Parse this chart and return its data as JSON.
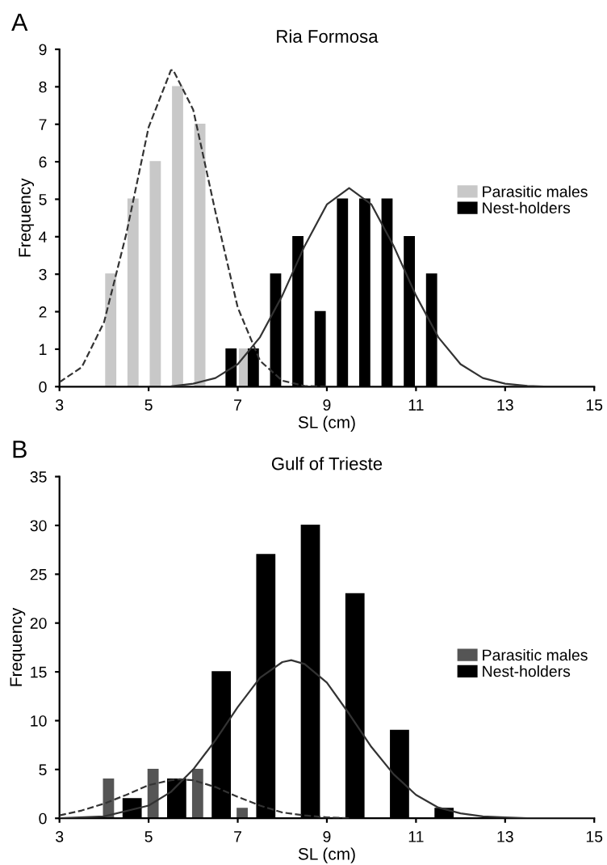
{
  "chart_data": [
    {
      "type": "bar",
      "title": "Ria Formosa",
      "xlabel": "SL (cm)",
      "ylabel": "Frequency",
      "annotations": [
        "A"
      ],
      "xlim": [
        3,
        15
      ],
      "xticks": [
        3,
        5,
        7,
        9,
        11,
        13,
        15
      ],
      "ylim": [
        0,
        9
      ],
      "yticks": [
        0,
        1,
        2,
        3,
        4,
        5,
        6,
        7,
        8,
        9
      ],
      "grid": false,
      "legend": "right",
      "series": [
        {
          "name": "Parasitic males",
          "color": "#c8c8c8",
          "x": [
            4.15,
            4.65,
            5.15,
            5.65,
            6.15,
            7.15
          ],
          "values": [
            3,
            5,
            6,
            8,
            7,
            1
          ]
        },
        {
          "name": "Nest-holders",
          "color": "#000000",
          "x": [
            6.85,
            7.35,
            7.85,
            8.35,
            8.85,
            9.35,
            9.85,
            10.35,
            10.85,
            11.35
          ],
          "values": [
            1,
            1,
            3,
            4,
            2,
            5,
            5,
            5,
            4,
            3
          ]
        },
        {
          "type": "line",
          "line_style": "dashed",
          "color": "#333333",
          "x": [
            3,
            3.5,
            4,
            4.5,
            5,
            5.5,
            5.55,
            6,
            6.5,
            7,
            7.5,
            8,
            8.5,
            9
          ],
          "values": [
            0.12,
            0.52,
            1.72,
            4.08,
            6.92,
            8.44,
            8.45,
            7.39,
            4.66,
            2.11,
            0.69,
            0.16,
            0.02,
            0
          ]
        },
        {
          "type": "line",
          "line_style": "solid",
          "color": "#333333",
          "x": [
            5,
            5.5,
            6,
            6.5,
            7,
            7.5,
            8,
            8.5,
            9,
            9.5,
            10,
            10.5,
            11,
            11.5,
            12,
            12.5,
            13,
            13.5,
            14,
            15
          ],
          "values": [
            0,
            0.01,
            0.08,
            0.23,
            0.6,
            1.32,
            2.43,
            3.75,
            4.86,
            5.3,
            4.86,
            3.75,
            2.43,
            1.32,
            0.6,
            0.23,
            0.08,
            0.02,
            0,
            0
          ]
        }
      ]
    },
    {
      "type": "bar",
      "title": "Gulf of Trieste",
      "xlabel": "SL (cm)",
      "ylabel": "Frequency",
      "annotations": [
        "B"
      ],
      "xlim": [
        3,
        15
      ],
      "xticks": [
        3,
        5,
        7,
        9,
        11,
        13,
        15
      ],
      "ylim": [
        0,
        35
      ],
      "yticks": [
        0,
        5,
        10,
        15,
        20,
        25,
        30,
        35
      ],
      "grid": false,
      "legend": "right",
      "series": [
        {
          "name": "Parasitic males",
          "color": "#555555",
          "x": [
            4.1,
            5.1,
            6.1,
            7.1
          ],
          "values": [
            4,
            5,
            5,
            1
          ]
        },
        {
          "name": "Nest-holders",
          "color": "#000000",
          "x": [
            4.63,
            5.63,
            6.63,
            7.63,
            8.63,
            9.63,
            10.63,
            11.63
          ],
          "values": [
            2,
            4,
            15,
            27,
            30,
            23,
            9,
            1
          ]
        },
        {
          "type": "line",
          "line_style": "dashed",
          "color": "#333333",
          "x": [
            3,
            3.5,
            4,
            4.5,
            5,
            5.5,
            5.7,
            6,
            6.5,
            7,
            7.5,
            8,
            8.5,
            9,
            9.5
          ],
          "values": [
            0.3,
            0.8,
            1.5,
            2.4,
            3.4,
            3.9,
            4,
            3.9,
            3.2,
            2.2,
            1.3,
            0.6,
            0.3,
            0.1,
            0
          ]
        },
        {
          "type": "line",
          "line_style": "solid",
          "color": "#333333",
          "x": [
            3,
            4,
            5,
            5.5,
            6,
            6.5,
            7,
            7.5,
            8,
            8.2,
            8.5,
            9,
            9.5,
            10,
            10.5,
            11,
            11.5,
            12,
            12.5,
            13,
            13.5,
            14,
            15
          ],
          "values": [
            0,
            0.2,
            1.3,
            2.7,
            5,
            8,
            11.4,
            14.4,
            16,
            16.2,
            15.8,
            13.9,
            10.7,
            7.3,
            4.5,
            2.4,
            1.1,
            0.5,
            0.2,
            0.1,
            0,
            0,
            0
          ]
        }
      ]
    }
  ]
}
